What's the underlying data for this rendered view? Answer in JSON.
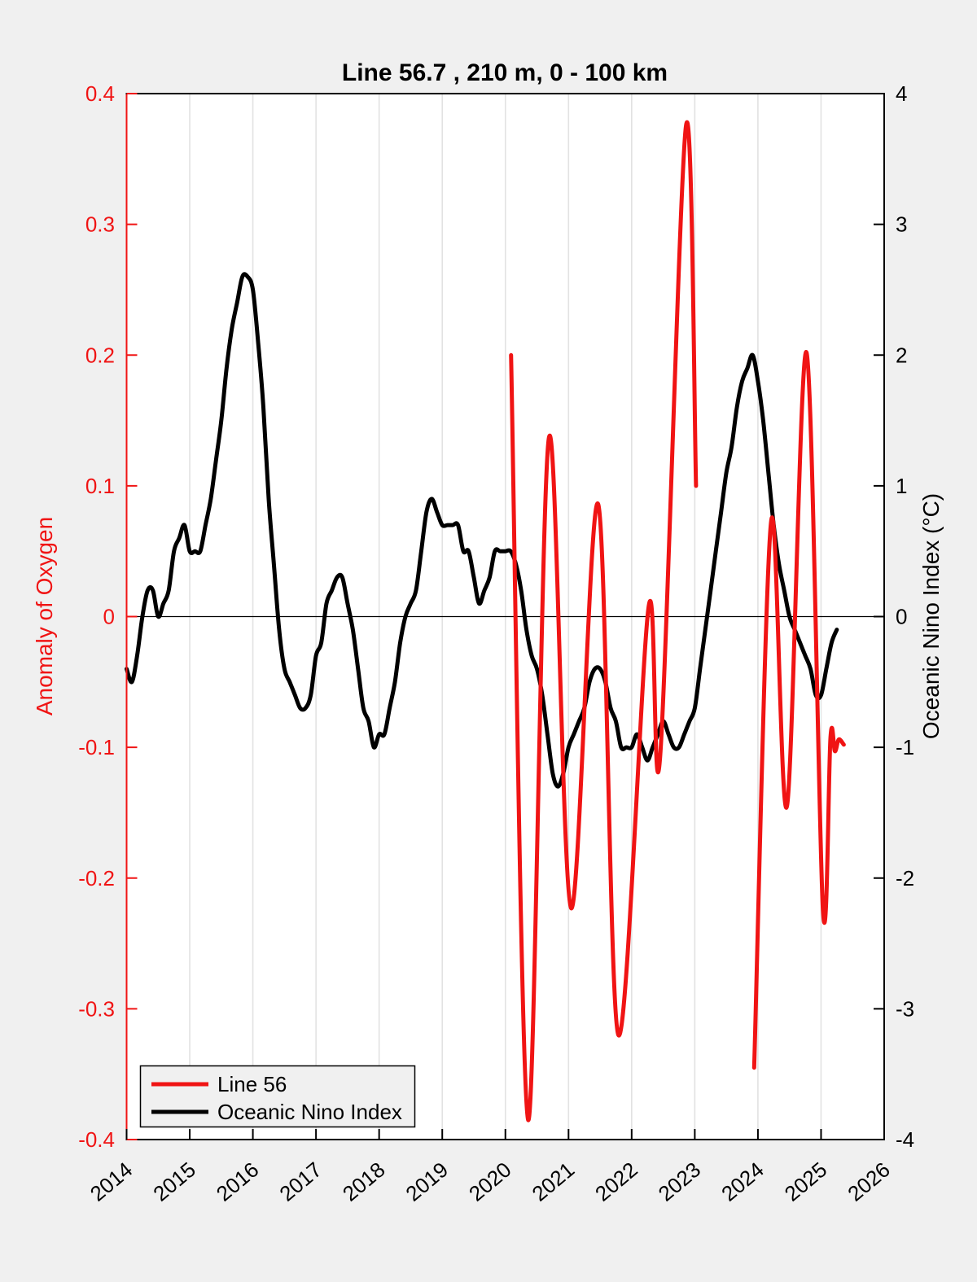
{
  "figure": {
    "title": "Line 56.7 , 210 m, 0 - 100 km",
    "background": "#f0f0f0",
    "plot_background": "#ffffff",
    "grid_color": "#e2e2e2"
  },
  "axes": {
    "x": {
      "min": 2014,
      "max": 2026,
      "tick_values": [
        2014,
        2015,
        2016,
        2017,
        2018,
        2019,
        2020,
        2021,
        2022,
        2023,
        2024,
        2025,
        2026
      ],
      "tick_labels": [
        "2014",
        "2015",
        "2016",
        "2017",
        "2018",
        "2019",
        "2020",
        "2021",
        "2022",
        "2023",
        "2024",
        "2025",
        "2026"
      ]
    },
    "y_left": {
      "label": "Anomaly of Oxygen",
      "color": "#f01414",
      "min": -0.4,
      "max": 0.4,
      "tick_values": [
        0.4,
        0.3,
        0.2,
        0.1,
        0,
        -0.1,
        -0.2,
        -0.3,
        -0.4
      ],
      "tick_labels": [
        "0.4",
        "0.3",
        "0.2",
        "0.1",
        "0",
        "-0.1",
        "-0.2",
        "-0.3",
        "-0.4"
      ]
    },
    "y_right": {
      "label": "Oceanic Nino Index (°C)",
      "color": "#000000",
      "min": -4,
      "max": 4,
      "tick_values": [
        4,
        3,
        2,
        1,
        0,
        -1,
        -2,
        -3,
        -4
      ],
      "tick_labels": [
        "4",
        "3",
        "2",
        "1",
        "0",
        "-1",
        "-2",
        "-3",
        "-4"
      ]
    }
  },
  "legend": {
    "entries": [
      {
        "label": "Line 56",
        "color": "#f01414"
      },
      {
        "label": "Oceanic Nino Index",
        "color": "#000000"
      }
    ]
  },
  "chart_data": {
    "type": "line",
    "title": "Line 56.7 , 210 m, 0 - 100 km",
    "xlabel": "",
    "ylabel_left": "Anomaly of Oxygen",
    "ylabel_right": "Oceanic Nino Index (°C)",
    "x_range": [
      2014,
      2026
    ],
    "y_left_range": [
      -0.4,
      0.4
    ],
    "y_right_range": [
      -4,
      4
    ],
    "grid": "x-only",
    "zero_line": true,
    "legend_position": "bottom-left",
    "series": [
      {
        "name": "Line 56",
        "axis": "left",
        "color": "#f01414",
        "line_width": 5,
        "segments": [
          [
            [
              2020.09,
              0.2
            ],
            [
              2020.36,
              -0.385
            ],
            [
              2020.69,
              0.137
            ],
            [
              2021.04,
              -0.223
            ],
            [
              2021.47,
              0.086
            ],
            [
              2021.79,
              -0.32
            ],
            [
              2022.27,
              0.008
            ],
            [
              2022.45,
              -0.108
            ],
            [
              2022.86,
              0.375
            ],
            [
              2023.02,
              0.1
            ]
          ],
          [
            [
              2023.94,
              -0.345
            ],
            [
              2024.21,
              0.073
            ],
            [
              2024.46,
              -0.145
            ],
            [
              2024.77,
              0.202
            ],
            [
              2025.03,
              -0.225
            ],
            [
              2025.15,
              -0.092
            ],
            [
              2025.22,
              -0.103
            ],
            [
              2025.28,
              -0.094
            ],
            [
              2025.36,
              -0.098
            ]
          ]
        ]
      },
      {
        "name": "Oceanic Nino Index",
        "axis": "right",
        "color": "#000000",
        "line_width": 5,
        "x_start": 2014.0,
        "x_step_months": 1,
        "values": [
          -0.4,
          -0.5,
          -0.3,
          0.0,
          0.2,
          0.2,
          0.0,
          0.1,
          0.2,
          0.5,
          0.6,
          0.7,
          0.5,
          0.5,
          0.5,
          0.7,
          0.9,
          1.2,
          1.5,
          1.9,
          2.2,
          2.4,
          2.6,
          2.6,
          2.5,
          2.1,
          1.6,
          0.9,
          0.4,
          -0.1,
          -0.4,
          -0.5,
          -0.6,
          -0.7,
          -0.7,
          -0.6,
          -0.3,
          -0.2,
          0.1,
          0.2,
          0.3,
          0.3,
          0.1,
          -0.1,
          -0.4,
          -0.7,
          -0.8,
          -1.0,
          -0.9,
          -0.9,
          -0.7,
          -0.5,
          -0.2,
          0.0,
          0.1,
          0.2,
          0.5,
          0.8,
          0.9,
          0.8,
          0.7,
          0.7,
          0.7,
          0.7,
          0.5,
          0.5,
          0.3,
          0.1,
          0.2,
          0.3,
          0.5,
          0.5,
          0.5,
          0.5,
          0.4,
          0.2,
          -0.1,
          -0.3,
          -0.4,
          -0.6,
          -0.9,
          -1.2,
          -1.3,
          -1.2,
          -1.0,
          -0.9,
          -0.8,
          -0.7,
          -0.5,
          -0.4,
          -0.4,
          -0.5,
          -0.7,
          -0.8,
          -1.0,
          -1.0,
          -1.0,
          -0.9,
          -1.0,
          -1.1,
          -1.0,
          -0.9,
          -0.8,
          -0.9,
          -1.0,
          -1.0,
          -0.9,
          -0.8,
          -0.7,
          -0.4,
          -0.1,
          0.2,
          0.5,
          0.8,
          1.1,
          1.3,
          1.6,
          1.8,
          1.9,
          2.0,
          1.8,
          1.5,
          1.1,
          0.7,
          0.4,
          0.2,
          0.0,
          -0.1,
          -0.2,
          -0.3,
          -0.4,
          -0.6,
          -0.6,
          -0.4,
          -0.2,
          -0.1
        ]
      }
    ]
  }
}
